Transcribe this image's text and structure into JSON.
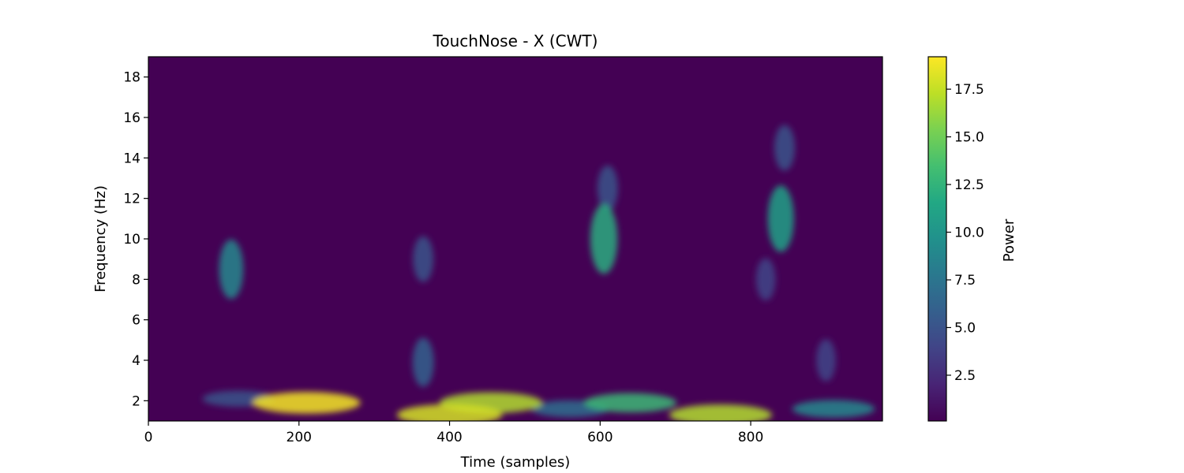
{
  "chart_data": {
    "type": "heatmap",
    "title": "TouchNose - X (CWT)",
    "xlabel": "Time (samples)",
    "ylabel": "Frequency (Hz)",
    "xlim": [
      0,
      975
    ],
    "ylim": [
      1,
      19
    ],
    "x_ticks": [
      0,
      200,
      400,
      600,
      800
    ],
    "x_tick_labels": [
      "0",
      "200",
      "400",
      "600",
      "800"
    ],
    "y_ticks": [
      2,
      4,
      6,
      8,
      10,
      12,
      14,
      16,
      18
    ],
    "y_tick_labels": [
      "2",
      "4",
      "6",
      "8",
      "10",
      "12",
      "14",
      "16",
      "18"
    ],
    "colormap": "viridis",
    "colorbar": {
      "label": "Power",
      "range": [
        0.1,
        19.2
      ],
      "ticks": [
        2.5,
        5.0,
        7.5,
        10.0,
        12.5,
        15.0,
        17.5
      ],
      "tick_labels": [
        "2.5",
        "5.0",
        "7.5",
        "10.0",
        "12.5",
        "15.0",
        "17.5"
      ]
    },
    "grid": false,
    "power_peaks": [
      {
        "t": 210,
        "f": 1.9,
        "power": 19.0
      },
      {
        "t": 400,
        "f": 1.3,
        "power": 18.0
      },
      {
        "t": 455,
        "f": 1.9,
        "power": 17.0
      },
      {
        "t": 560,
        "f": 1.6,
        "power": 7.0
      },
      {
        "t": 640,
        "f": 1.9,
        "power": 13.0
      },
      {
        "t": 760,
        "f": 1.3,
        "power": 17.0
      },
      {
        "t": 910,
        "f": 1.6,
        "power": 9.0
      },
      {
        "t": 120,
        "f": 2.1,
        "power": 5.0
      },
      {
        "t": 110,
        "f": 8.5,
        "power": 9.0
      },
      {
        "t": 365,
        "f": 3.9,
        "power": 6.0
      },
      {
        "t": 365,
        "f": 9.0,
        "power": 5.0
      },
      {
        "t": 605,
        "f": 10.0,
        "power": 12.0
      },
      {
        "t": 610,
        "f": 12.5,
        "power": 5.0
      },
      {
        "t": 840,
        "f": 11.0,
        "power": 11.0
      },
      {
        "t": 845,
        "f": 14.5,
        "power": 5.0
      },
      {
        "t": 820,
        "f": 8.0,
        "power": 4.0
      },
      {
        "t": 900,
        "f": 4.0,
        "power": 4.0
      }
    ]
  }
}
